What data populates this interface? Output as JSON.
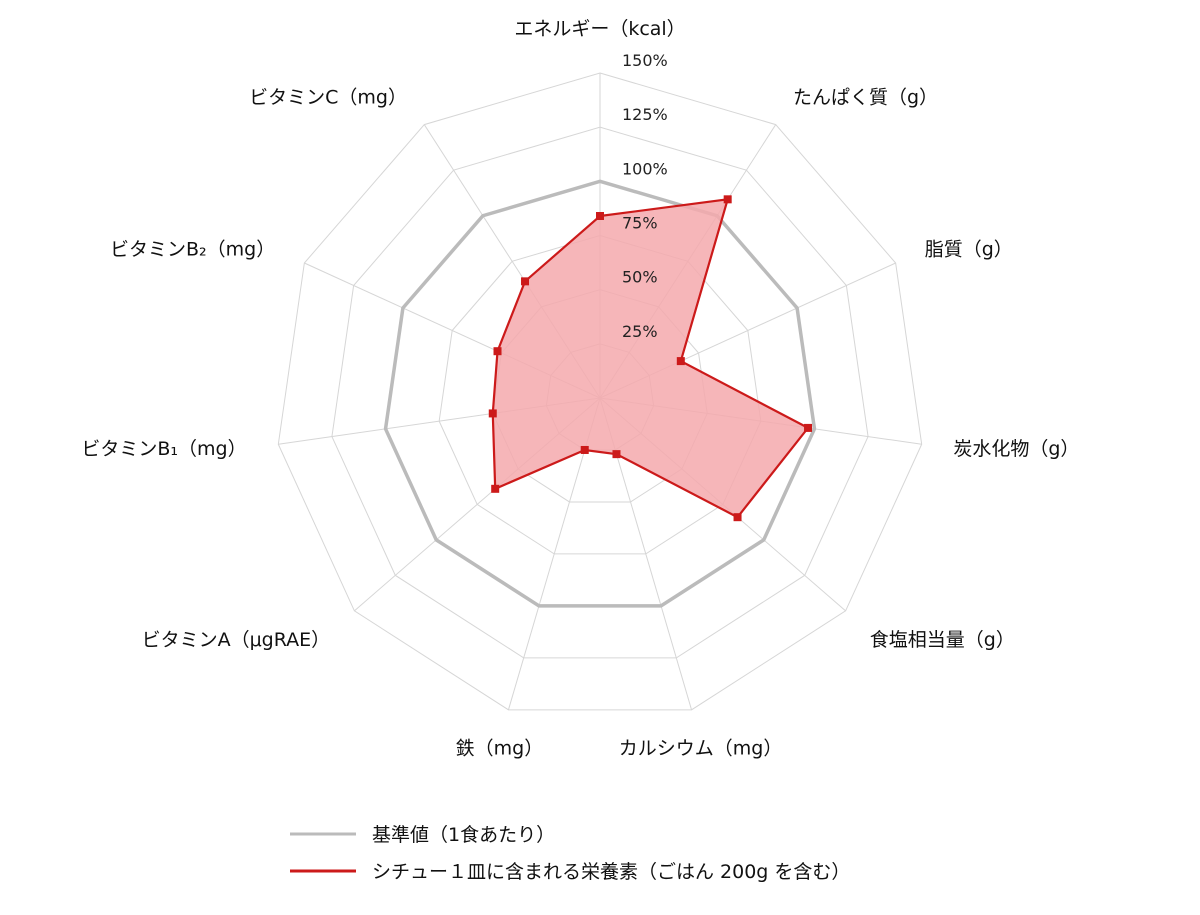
{
  "chart_data": {
    "type": "radar",
    "title": "",
    "axes": [
      "エネルギー（kcal）",
      "たんぱく質（g）",
      "脂質（g）",
      "炭水化物（g）",
      "食塩相当量（g）",
      "カルシウム（mg）",
      "鉄（mg）",
      "ビタミンA（μgRAE）",
      "ビタミンB₁（mg）",
      "ビタミンB₂（mg）",
      "ビタミンC（mg）"
    ],
    "ticks": [
      "25%",
      "50%",
      "75%",
      "100%",
      "125%",
      "150%"
    ],
    "tick_values": [
      25,
      50,
      75,
      100,
      125,
      150
    ],
    "rlim": [
      0,
      150
    ],
    "grid": true,
    "legend_position": "bottom",
    "series": [
      {
        "name": "基準値（1食あたり）",
        "color": "#bbbbbb",
        "values": [
          100,
          100,
          100,
          100,
          100,
          100,
          100,
          100,
          100,
          100,
          100
        ]
      },
      {
        "name": "シチュー１皿に含まれる栄養素（ごはん 200g を含む）",
        "color": "#cc1a1a",
        "fill": "#f4a9ad",
        "values": [
          84,
          109,
          41,
          97,
          84,
          27,
          25,
          64,
          50,
          52,
          64
        ]
      }
    ]
  }
}
